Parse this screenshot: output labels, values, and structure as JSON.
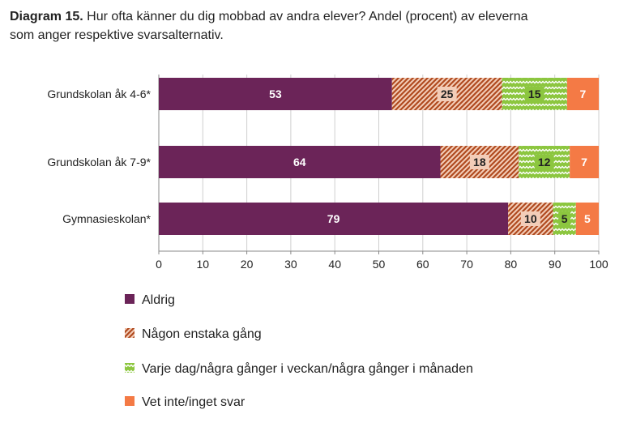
{
  "title": {
    "prefix": "Diagram 15.",
    "line1": " Hur ofta känner du dig mobbad av andra elever? Andel (procent) av eleverna",
    "line2": "som anger respektive svarsalternativ."
  },
  "colors": {
    "aldrig": "#6b2458",
    "nagon": "#c0562a",
    "varje": "#8cc63f",
    "vet": "#f47a45",
    "grid": "#cfcfcf"
  },
  "chart_data": {
    "type": "bar",
    "orientation": "horizontal",
    "stacked": true,
    "categories": [
      "Grundskolan åk 4-6*",
      "Grundskolan åk 7-9*",
      "Gymnasieskolan*"
    ],
    "series": [
      {
        "name": "Aldrig",
        "values": [
          53,
          64,
          79
        ],
        "labels": [
          "53",
          "64",
          "79"
        ],
        "color": "#6b2458",
        "pattern": "solid"
      },
      {
        "name": "Någon enstaka gång",
        "values": [
          25,
          18,
          10
        ],
        "labels": [
          "25",
          "18",
          "10"
        ],
        "color": "#c0562a",
        "pattern": "hatch"
      },
      {
        "name": "Varje dag/några gånger i veckan/några gånger i månaden",
        "values": [
          15,
          12,
          5
        ],
        "labels": [
          "15",
          "12",
          "5"
        ],
        "color": "#8cc63f",
        "pattern": "zigzag"
      },
      {
        "name": "Vet inte/inget svar",
        "values": [
          7,
          7,
          5
        ],
        "labels": [
          "7",
          "7",
          "5"
        ],
        "color": "#f47a45",
        "pattern": "solid"
      }
    ],
    "plotted_values": [
      [
        53,
        64,
        79.4
      ],
      [
        25,
        17.8,
        10.2
      ],
      [
        14.8,
        11.6,
        5.2
      ],
      [
        7.2,
        6.6,
        5.2
      ]
    ],
    "xlim": [
      0,
      100
    ],
    "xticks": [
      "0",
      "10",
      "20",
      "30",
      "40",
      "50",
      "60",
      "70",
      "80",
      "90",
      "100"
    ],
    "grid": "vertical",
    "legend": "bottom"
  }
}
